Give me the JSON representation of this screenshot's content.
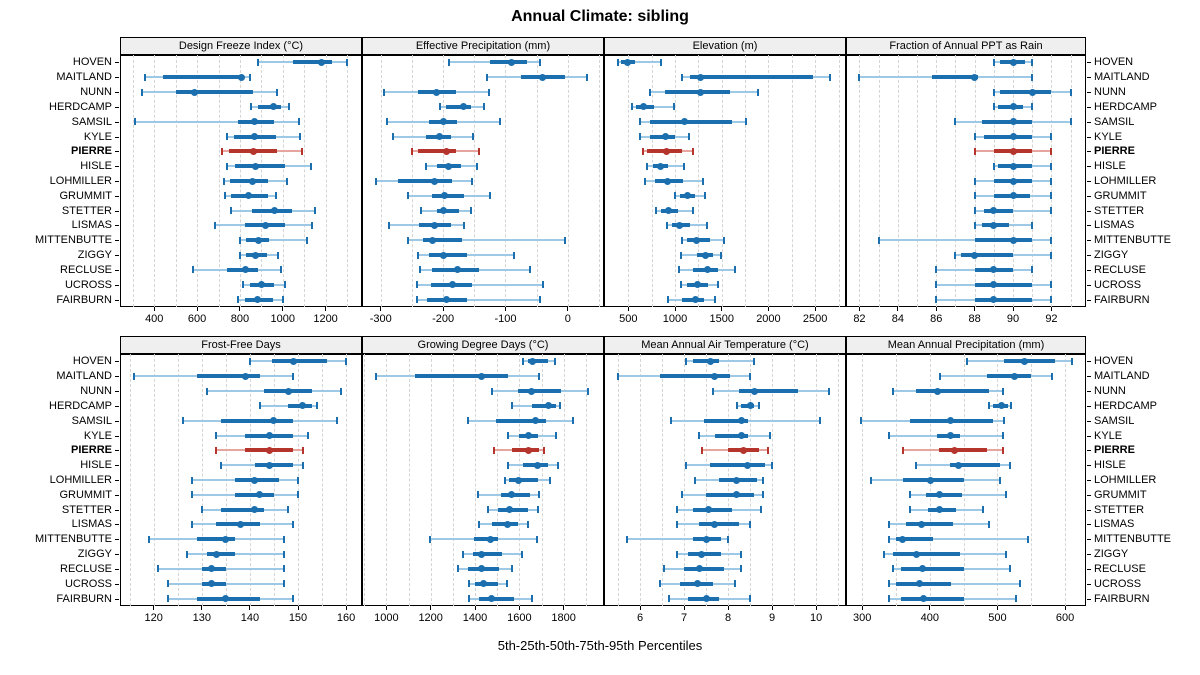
{
  "title": "Annual Climate: sibling",
  "footer": "5th-25th-50th-75th-95th Percentiles",
  "stations": [
    "HOVEN",
    "MAITLAND",
    "NUNN",
    "HERDCAMP",
    "SAMSIL",
    "KYLE",
    "PIERRE",
    "HISLE",
    "LOHMILLER",
    "GRUMMIT",
    "STETTER",
    "LISMAS",
    "MITTENBUTTE",
    "ZIGGY",
    "RECLUSE",
    "UCROSS",
    "FAIRBURN"
  ],
  "highlight_station": "PIERRE",
  "colors": {
    "series_dark": "#1b6fae",
    "series_light": "#9ec9e6",
    "highlight_dark": "#b5342c",
    "highlight_light": "#e6a59e",
    "grid": "#d4d4d4",
    "strip_bg": "#efefef",
    "border": "#000000"
  },
  "chart_data": {
    "type": "dotplot-percentiles",
    "percentile_labels": [
      "5th",
      "25th",
      "50th",
      "75th",
      "95th"
    ],
    "legend_note": "one row per station; thin light line = 5th-95th, thick bar = 25th-75th, dot = median; PIERRE highlighted red",
    "panels": [
      {
        "title": "Design Freeze Index (°C)",
        "xlim": [
          240,
          1370
        ],
        "ticks": [
          400,
          600,
          800,
          1000,
          1200
        ],
        "minor_step": 100,
        "values": [
          [
            885,
            1050,
            1180,
            1230,
            1300
          ],
          [
            355,
            440,
            805,
            815,
            845
          ],
          [
            345,
            500,
            590,
            860,
            975
          ],
          [
            850,
            885,
            955,
            990,
            1030
          ],
          [
            310,
            790,
            870,
            960,
            1075
          ],
          [
            740,
            770,
            870,
            970,
            1080
          ],
          [
            715,
            750,
            865,
            975,
            1090
          ],
          [
            740,
            775,
            875,
            1010,
            1130
          ],
          [
            725,
            755,
            860,
            930,
            1020
          ],
          [
            730,
            760,
            840,
            930,
            970
          ],
          [
            760,
            855,
            960,
            1045,
            1150
          ],
          [
            685,
            825,
            920,
            1010,
            1135
          ],
          [
            800,
            830,
            885,
            935,
            1115
          ],
          [
            800,
            830,
            875,
            925,
            980
          ],
          [
            580,
            740,
            825,
            885,
            990
          ],
          [
            815,
            845,
            900,
            960,
            1010
          ],
          [
            790,
            825,
            880,
            955,
            1000
          ]
        ]
      },
      {
        "title": "Effective Precipitation (mm)",
        "xlim": [
          -330,
          58
        ],
        "ticks": [
          -300,
          -200,
          -100,
          0
        ],
        "minor_step": 50,
        "values": [
          [
            -190,
            -125,
            -90,
            -65,
            -45
          ],
          [
            -130,
            -75,
            -40,
            -5,
            30
          ],
          [
            -295,
            -240,
            -210,
            -180,
            -127
          ],
          [
            -205,
            -195,
            -168,
            -155,
            -135
          ],
          [
            -290,
            -222,
            -200,
            -177,
            -108
          ],
          [
            -280,
            -228,
            -206,
            -187,
            -152
          ],
          [
            -250,
            -240,
            -195,
            -180,
            -142
          ],
          [
            -228,
            -209,
            -192,
            -171,
            -145
          ],
          [
            -308,
            -273,
            -213,
            -186,
            -154
          ],
          [
            -257,
            -217,
            -197,
            -166,
            -124
          ],
          [
            -235,
            -210,
            -199,
            -174,
            -156
          ],
          [
            -287,
            -238,
            -213,
            -187,
            -167
          ],
          [
            -257,
            -233,
            -217,
            -169,
            -5
          ],
          [
            -240,
            -222,
            -200,
            -161,
            -86
          ],
          [
            -237,
            -217,
            -177,
            -142,
            -61
          ],
          [
            -242,
            -219,
            -185,
            -153,
            -40
          ],
          [
            -242,
            -225,
            -195,
            -161,
            -45
          ]
        ]
      },
      {
        "title": "Elevation (m)",
        "xlim": [
          240,
          2830
        ],
        "ticks": [
          500,
          1000,
          1500,
          2000,
          2500
        ],
        "minor_step": 250,
        "values": [
          [
            390,
            420,
            490,
            575,
            855
          ],
          [
            1080,
            1160,
            1270,
            2480,
            2660
          ],
          [
            730,
            890,
            1275,
            1590,
            1890
          ],
          [
            535,
            580,
            660,
            770,
            990
          ],
          [
            630,
            730,
            1105,
            1605,
            1755
          ],
          [
            620,
            730,
            900,
            1000,
            1155
          ],
          [
            655,
            695,
            910,
            1070,
            1190
          ],
          [
            695,
            760,
            845,
            930,
            1095
          ],
          [
            680,
            785,
            915,
            1090,
            1295
          ],
          [
            1000,
            1055,
            1130,
            1215,
            1320
          ],
          [
            795,
            845,
            930,
            1035,
            1195
          ],
          [
            910,
            965,
            1045,
            1160,
            1345
          ],
          [
            1070,
            1130,
            1230,
            1375,
            1525
          ],
          [
            1060,
            1230,
            1330,
            1410,
            1490
          ],
          [
            1045,
            1190,
            1345,
            1465,
            1645
          ],
          [
            1060,
            1130,
            1240,
            1355,
            1455
          ],
          [
            930,
            1080,
            1220,
            1305,
            1430
          ]
        ]
      },
      {
        "title": "Fraction of Annual PPT as Rain",
        "xlim": [
          81.3,
          93.8
        ],
        "ticks": [
          82,
          84,
          86,
          88,
          90,
          92
        ],
        "minor_step": 1,
        "values": [
          [
            89,
            89.3,
            90,
            90.6,
            91
          ],
          [
            82,
            85.8,
            88,
            88.2,
            91
          ],
          [
            89,
            89.3,
            91,
            92,
            93
          ],
          [
            89,
            89.2,
            90,
            90.5,
            91
          ],
          [
            87,
            88.4,
            90,
            91,
            93
          ],
          [
            88,
            88.5,
            90,
            91,
            92
          ],
          [
            88,
            89,
            90,
            91,
            92
          ],
          [
            89,
            89.2,
            90,
            91,
            92
          ],
          [
            88,
            89,
            90,
            91,
            92
          ],
          [
            88,
            89,
            90,
            90.9,
            92
          ],
          [
            88,
            88.5,
            89,
            90,
            92
          ],
          [
            88,
            88.4,
            89,
            89.8,
            91
          ],
          [
            83,
            88,
            90,
            91,
            92
          ],
          [
            87,
            87.3,
            88,
            90,
            92
          ],
          [
            86,
            88,
            89,
            90,
            91
          ],
          [
            86,
            88,
            89,
            91,
            92
          ],
          [
            86,
            88,
            89,
            91,
            92
          ]
        ]
      },
      {
        "title": "Frost-Free Days",
        "xlim": [
          113,
          163.3
        ],
        "ticks": [
          120,
          130,
          140,
          150,
          160
        ],
        "minor_step": 5,
        "values": [
          [
            140,
            144.5,
            149,
            156,
            160
          ],
          [
            116,
            129,
            139,
            142,
            149
          ],
          [
            131,
            143,
            148,
            153,
            159
          ],
          [
            142,
            148,
            151,
            153,
            154
          ],
          [
            126,
            134,
            145,
            149,
            158
          ],
          [
            133,
            139,
            144,
            149,
            152
          ],
          [
            133,
            139,
            144,
            149,
            151
          ],
          [
            134,
            141,
            144,
            149,
            151
          ],
          [
            128,
            137,
            141,
            146,
            150
          ],
          [
            128,
            137,
            142,
            145,
            150
          ],
          [
            130,
            134,
            141,
            143,
            148
          ],
          [
            128,
            133,
            138,
            142,
            149
          ],
          [
            119,
            129,
            135,
            137,
            147
          ],
          [
            127,
            131,
            133,
            137,
            147
          ],
          [
            121,
            130,
            132,
            135,
            147
          ],
          [
            123,
            130,
            132,
            135,
            147
          ],
          [
            123,
            129,
            135,
            142,
            149
          ]
        ]
      },
      {
        "title": "Growing Degree Days (°C)",
        "xlim": [
          890,
          1982
        ],
        "ticks": [
          1000,
          1200,
          1400,
          1600,
          1800
        ],
        "minor_step": 100,
        "values": [
          [
            1615,
            1640,
            1660,
            1730,
            1760
          ],
          [
            955,
            1130,
            1430,
            1550,
            1690
          ],
          [
            1475,
            1595,
            1655,
            1790,
            1910
          ],
          [
            1565,
            1655,
            1730,
            1765,
            1785
          ],
          [
            1370,
            1495,
            1675,
            1720,
            1840
          ],
          [
            1550,
            1600,
            1640,
            1685,
            1765
          ],
          [
            1485,
            1565,
            1640,
            1690,
            1710
          ],
          [
            1550,
            1615,
            1680,
            1730,
            1775
          ],
          [
            1535,
            1555,
            1595,
            1685,
            1740
          ],
          [
            1415,
            1515,
            1565,
            1650,
            1690
          ],
          [
            1460,
            1505,
            1555,
            1640,
            1685
          ],
          [
            1420,
            1475,
            1545,
            1595,
            1640
          ],
          [
            1195,
            1395,
            1470,
            1505,
            1680
          ],
          [
            1345,
            1390,
            1430,
            1520,
            1610
          ],
          [
            1325,
            1370,
            1430,
            1510,
            1565
          ],
          [
            1375,
            1400,
            1440,
            1505,
            1545
          ],
          [
            1375,
            1420,
            1475,
            1575,
            1655
          ]
        ]
      },
      {
        "title": "Mean Annual Air Temperature (°C)",
        "xlim": [
          5.18,
          10.68
        ],
        "ticks": [
          6,
          7,
          8,
          9,
          10
        ],
        "minor_step": 0.5,
        "values": [
          [
            7.05,
            7.2,
            7.6,
            7.8,
            8.6
          ],
          [
            5.5,
            6.45,
            7.7,
            8.05,
            8.5
          ],
          [
            7.65,
            8.25,
            8.6,
            9.6,
            10.3
          ],
          [
            8.2,
            8.3,
            8.5,
            8.6,
            8.7
          ],
          [
            6.7,
            7.45,
            8.3,
            8.45,
            10.1
          ],
          [
            7.35,
            7.7,
            8.3,
            8.45,
            8.95
          ],
          [
            7.4,
            8.0,
            8.35,
            8.7,
            8.9
          ],
          [
            7.05,
            7.6,
            8.45,
            8.85,
            9.0
          ],
          [
            7.25,
            7.8,
            8.2,
            8.65,
            8.8
          ],
          [
            6.95,
            7.5,
            8.2,
            8.6,
            8.8
          ],
          [
            6.85,
            7.2,
            7.55,
            8.1,
            8.75
          ],
          [
            6.85,
            7.35,
            7.7,
            8.25,
            8.5
          ],
          [
            5.7,
            7.2,
            7.5,
            7.85,
            8.0
          ],
          [
            6.85,
            7.1,
            7.4,
            7.85,
            8.3
          ],
          [
            6.55,
            7.0,
            7.35,
            7.9,
            8.3
          ],
          [
            6.45,
            6.9,
            7.3,
            7.65,
            8.15
          ],
          [
            6.65,
            7.1,
            7.5,
            7.8,
            8.5
          ]
        ]
      },
      {
        "title": "Mean Annual Precipitation (mm)",
        "xlim": [
          276,
          631
        ],
        "ticks": [
          300,
          400,
          500,
          600
        ],
        "minor_step": 50,
        "values": [
          [
            455,
            510,
            540,
            585,
            610
          ],
          [
            415,
            485,
            525,
            550,
            580
          ],
          [
            345,
            380,
            412,
            488,
            508
          ],
          [
            487,
            493,
            506,
            516,
            520
          ],
          [
            298,
            370,
            430,
            494,
            509
          ],
          [
            340,
            410,
            430,
            445,
            508
          ],
          [
            360,
            413,
            437,
            484,
            508
          ],
          [
            380,
            430,
            442,
            504,
            519
          ],
          [
            313,
            360,
            401,
            450,
            504
          ],
          [
            370,
            395,
            415,
            447,
            513
          ],
          [
            370,
            398,
            414,
            439,
            478
          ],
          [
            340,
            365,
            388,
            434,
            488
          ],
          [
            340,
            350,
            360,
            404,
            545
          ],
          [
            332,
            346,
            381,
            445,
            513
          ],
          [
            345,
            358,
            389,
            450,
            519
          ],
          [
            340,
            350,
            384,
            431,
            533
          ],
          [
            340,
            357,
            391,
            450,
            528
          ]
        ]
      }
    ]
  }
}
